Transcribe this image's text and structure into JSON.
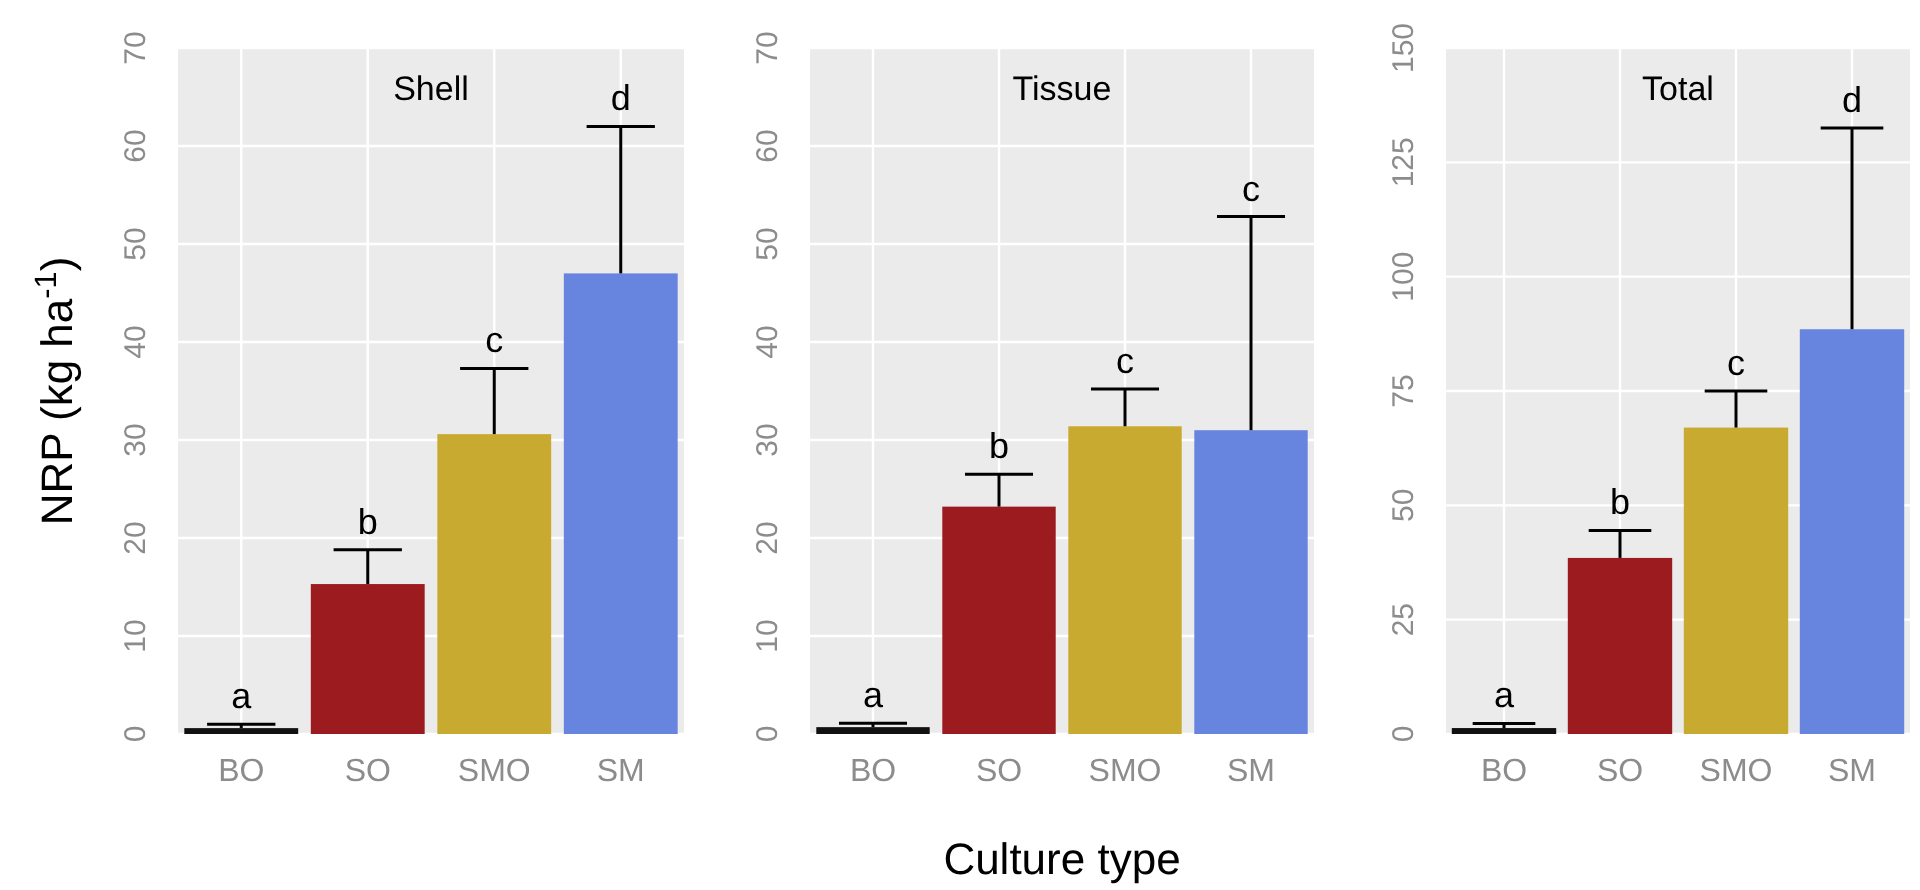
{
  "chart_data": [
    {
      "type": "bar",
      "title": "Shell",
      "ylabel": "NRP (kg ha$^{-1}$)",
      "categories": [
        "BO",
        "SO",
        "SMO",
        "SM"
      ],
      "values": [
        0.6,
        15.3,
        30.6,
        47
      ],
      "colors": [
        "#111111",
        "#9b1b1f",
        "#c9aa30",
        "#6784de"
      ],
      "errors": [
        [
          0.6,
          1
        ],
        [
          15.3,
          18.8
        ],
        [
          30.6,
          37.3
        ],
        [
          47,
          62
        ]
      ],
      "ylim": [
        0,
        70
      ],
      "yticks": [
        0,
        10,
        20,
        30,
        40,
        50,
        60,
        70
      ],
      "grid": true,
      "annotations": [
        {
          "text": "a",
          "x": "BO",
          "y": 1
        },
        {
          "text": "b",
          "x": "SO",
          "y": 18.8
        },
        {
          "text": "c",
          "x": "SMO",
          "y": 37.3
        },
        {
          "text": "d",
          "x": "SM",
          "y": 62
        }
      ]
    },
    {
      "type": "bar",
      "title": "Tissue",
      "xlabel": "Culture type",
      "categories": [
        "BO",
        "SO",
        "SMO",
        "SM"
      ],
      "values": [
        0.7,
        23.2,
        31.4,
        31
      ],
      "colors": [
        "#111111",
        "#9b1b1f",
        "#c9aa30",
        "#6784de"
      ],
      "errors": [
        [
          0.7,
          1.1
        ],
        [
          23.2,
          26.5
        ],
        [
          31.4,
          35.2
        ],
        [
          31,
          52.8
        ]
      ],
      "ylim": [
        0,
        70
      ],
      "yticks": [
        0,
        10,
        20,
        30,
        40,
        50,
        60,
        70
      ],
      "grid": true,
      "annotations": [
        {
          "text": "a",
          "x": "BO",
          "y": 1.1
        },
        {
          "text": "b",
          "x": "SO",
          "y": 26.5
        },
        {
          "text": "c",
          "x": "SMO",
          "y": 35.2
        },
        {
          "text": "c",
          "x": "SM",
          "y": 52.8
        }
      ]
    },
    {
      "type": "bar",
      "title": "Total",
      "categories": [
        "BO",
        "SO",
        "SMO",
        "SM"
      ],
      "values": [
        1.3,
        38.5,
        67,
        88.5
      ],
      "colors": [
        "#111111",
        "#9b1b1f",
        "#c9aa30",
        "#6784de"
      ],
      "errors": [
        [
          1.3,
          2.3
        ],
        [
          38.5,
          44.5
        ],
        [
          67,
          75
        ],
        [
          88.5,
          132.5
        ]
      ],
      "ylim": [
        0,
        150
      ],
      "yticks": [
        0,
        25,
        50,
        75,
        100,
        125,
        150
      ],
      "grid": true,
      "annotations": [
        {
          "text": "a",
          "x": "BO",
          "y": 2.3
        },
        {
          "text": "b",
          "x": "SO",
          "y": 44.5
        },
        {
          "text": "c",
          "x": "SMO",
          "y": 75
        },
        {
          "text": "d",
          "x": "SM",
          "y": 132.5
        }
      ]
    }
  ]
}
